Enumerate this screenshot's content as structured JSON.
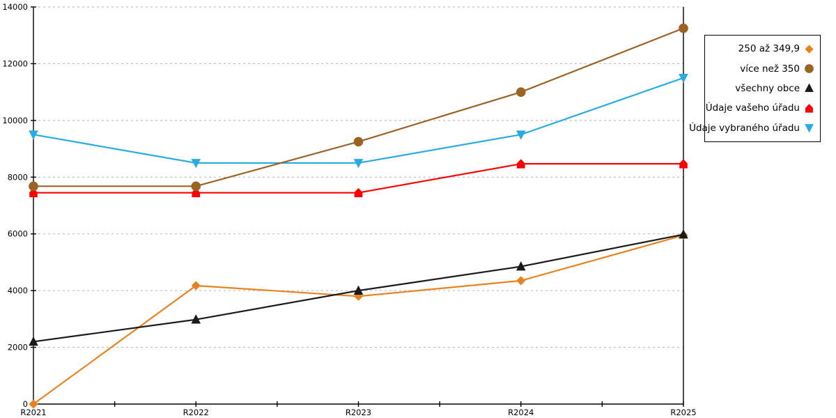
{
  "chart_data": {
    "type": "line",
    "title": "",
    "xlabel": "",
    "ylabel": "",
    "categories": [
      "R2021",
      "R2022",
      "R2023",
      "R2024",
      "R2025"
    ],
    "series": [
      {
        "name": "250 až 349,9",
        "marker": "diamond",
        "color": "#E8821E",
        "values": [
          0,
          4175,
          3800,
          4350,
          5950
        ]
      },
      {
        "name": "více než 350",
        "marker": "circle",
        "color": "#9A6324",
        "values": [
          7680,
          7680,
          9250,
          11000,
          13250
        ]
      },
      {
        "name": "všechny obce",
        "marker": "triangle-up",
        "color": "#1A1A1A",
        "values": [
          2200,
          2980,
          4000,
          4850,
          5980
        ]
      },
      {
        "name": "Údaje vašeho úřadu",
        "marker": "house",
        "color": "#FF0000",
        "values": [
          7450,
          7450,
          7450,
          8470,
          8470
        ]
      },
      {
        "name": "Údaje vybraného úřadu",
        "marker": "triangle-down",
        "color": "#29ABE2",
        "values": [
          9500,
          8500,
          8500,
          9500,
          11500
        ]
      }
    ],
    "ylim": [
      0,
      14000
    ],
    "ytick_step": 2000,
    "y_tick_labels": [
      "0",
      "2000",
      "4000",
      "6000",
      "8000",
      "10000",
      "12000",
      "14000"
    ],
    "grid": "horizontal-dashed",
    "grid_color": "#B3B3B3",
    "axis_color": "#000000",
    "legend_position": "right",
    "legend_border_color": "#000000",
    "draw_order": [
      0,
      4,
      2,
      3,
      1
    ]
  }
}
